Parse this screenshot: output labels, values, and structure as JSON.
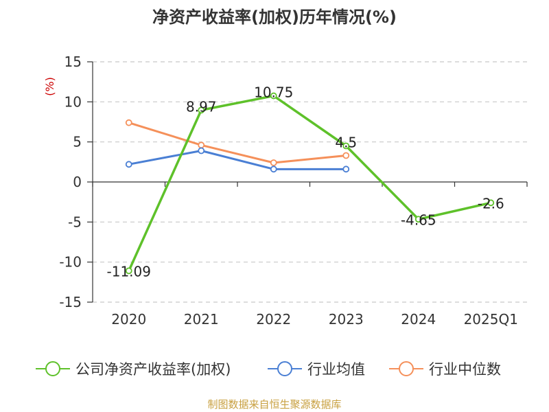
{
  "chart_data": {
    "type": "line",
    "title": "净资产收益率(加权)历年情况(%)",
    "ylabel": "(%)",
    "xlabel": "",
    "categories": [
      "2020",
      "2021",
      "2022",
      "2023",
      "2024",
      "2025Q1"
    ],
    "ylim": [
      -15,
      15
    ],
    "yticks": [
      15,
      10,
      5,
      0,
      -5,
      -10,
      -15
    ],
    "grid": true,
    "legend_position": "bottom",
    "series": [
      {
        "name": "公司净资产收益率(加权)",
        "color": "#5ec12a",
        "values": [
          -11.09,
          8.97,
          10.75,
          4.5,
          -4.65,
          -2.6
        ],
        "labels": [
          "-11.09",
          "8.97",
          "10.75",
          "4.5",
          "-4.65",
          "-2.6"
        ]
      },
      {
        "name": "行业均值",
        "color": "#4a7fd4",
        "values": [
          2.2,
          3.9,
          1.6,
          1.6,
          null,
          null
        ]
      },
      {
        "name": "行业中位数",
        "color": "#f5905a",
        "values": [
          7.4,
          4.6,
          2.4,
          3.3,
          null,
          null
        ]
      }
    ]
  },
  "footer": {
    "source": "制图数据来自恒生聚源数据库"
  }
}
